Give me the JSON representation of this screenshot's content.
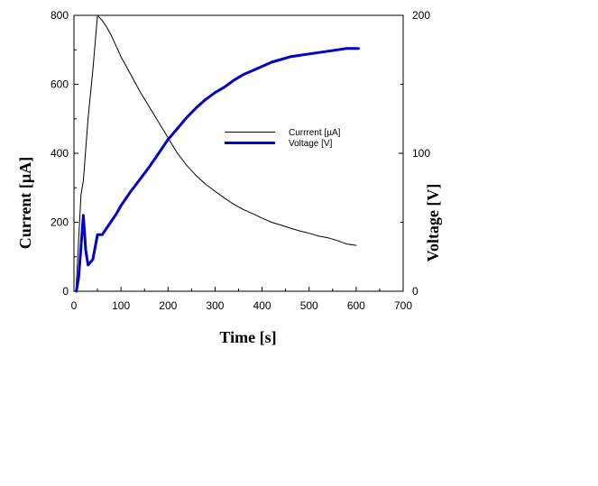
{
  "chart_data": {
    "type": "line",
    "title": "",
    "xlabel": "Time [s]",
    "ylabel_left": "Current [µA]",
    "ylabel_right": "Voltage [V]",
    "xlim": [
      0,
      700
    ],
    "ylim_left": [
      0,
      800
    ],
    "ylim_right": [
      0,
      200
    ],
    "grid": false,
    "legend_position": "upper-right-inside",
    "x_ticks": [
      "0",
      "100",
      "200",
      "300",
      "400",
      "500",
      "600",
      "700"
    ],
    "y_left_ticks": [
      "0",
      "200",
      "400",
      "600",
      "800"
    ],
    "y_right_ticks": [
      "0",
      "100",
      "200"
    ],
    "series": [
      {
        "name": "Currrent [µA]",
        "axis": "left",
        "color": "#000000",
        "x": [
          5,
          10,
          15,
          20,
          30,
          40,
          50,
          60,
          70,
          80,
          100,
          120,
          140,
          160,
          180,
          200,
          220,
          240,
          260,
          280,
          300,
          320,
          340,
          360,
          380,
          400,
          420,
          440,
          460,
          480,
          500,
          520,
          540,
          560,
          580,
          600
        ],
        "y": [
          20,
          150,
          280,
          320,
          500,
          640,
          800,
          785,
          765,
          740,
          680,
          630,
          580,
          535,
          490,
          445,
          400,
          365,
          335,
          310,
          290,
          270,
          252,
          237,
          225,
          212,
          200,
          192,
          183,
          175,
          168,
          160,
          155,
          147,
          137,
          133
        ]
      },
      {
        "name": "Voltage [V]",
        "axis": "right",
        "color": "#0000cc",
        "x": [
          5,
          10,
          15,
          20,
          25,
          30,
          40,
          50,
          60,
          70,
          80,
          90,
          100,
          120,
          140,
          160,
          180,
          200,
          220,
          240,
          260,
          280,
          300,
          320,
          340,
          360,
          380,
          400,
          420,
          440,
          460,
          480,
          500,
          520,
          540,
          560,
          580,
          600,
          605
        ],
        "y": [
          0,
          10,
          32,
          55,
          30,
          19,
          23,
          41,
          41,
          46,
          51,
          56,
          62,
          72,
          81,
          90,
          100,
          110,
          118,
          126,
          133,
          139,
          144,
          148,
          153,
          157,
          160,
          163,
          166,
          168,
          170,
          171,
          172,
          173,
          174,
          175,
          176,
          176,
          176
        ]
      }
    ]
  }
}
